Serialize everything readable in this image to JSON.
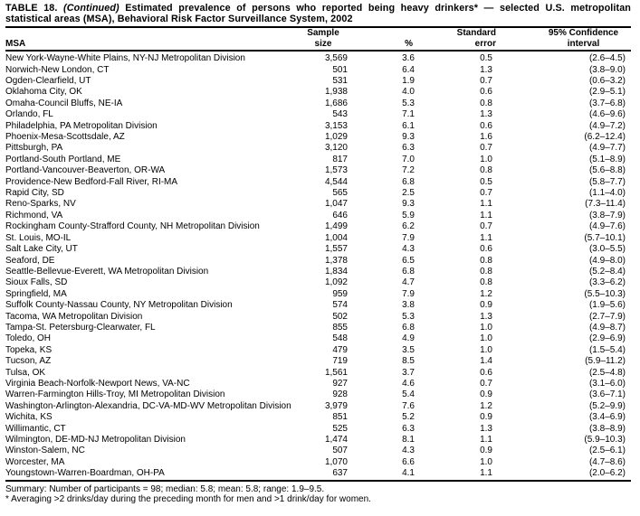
{
  "page": {
    "title": {
      "label": "TABLE 18.",
      "continued": "(Continued)",
      "text": "Estimated prevalence of persons who reported being heavy drinkers* — selected U.S. metropolitan statistical areas (MSA), Behavioral Risk Factor Surveillance System, 2002"
    },
    "columns": {
      "msa": "MSA",
      "sample_line1": "Sample",
      "sample_line2": "size",
      "percent": "%",
      "se_line1": "Standard",
      "se_line2": "error",
      "ci_line1": "95% Confidence",
      "ci_line2": "interval"
    },
    "summary": "Summary: Number of participants = 98; median: 5.8; mean: 5.8; range: 1.9–9.5.",
    "footnote": "* Averaging >2 drinks/day during the preceding month for men and >1 drink/day for women."
  },
  "chart_data": {
    "type": "table",
    "columns": [
      "MSA",
      "Sample size",
      "%",
      "Standard error",
      "95% Confidence interval"
    ],
    "rows": [
      [
        "New York-Wayne-White Plains, NY-NJ Metropolitan Division",
        "3,569",
        "3.6",
        "0.5",
        "(2.6–4.5)"
      ],
      [
        "Norwich-New London, CT",
        "501",
        "6.4",
        "1.3",
        "(3.8–9.0)"
      ],
      [
        "Ogden-Clearfield, UT",
        "531",
        "1.9",
        "0.7",
        "(0.6–3.2)"
      ],
      [
        "Oklahoma City, OK",
        "1,938",
        "4.0",
        "0.6",
        "(2.9–5.1)"
      ],
      [
        "Omaha-Council Bluffs, NE-IA",
        "1,686",
        "5.3",
        "0.8",
        "(3.7–6.8)"
      ],
      [
        "Orlando, FL",
        "543",
        "7.1",
        "1.3",
        "(4.6–9.6)"
      ],
      [
        "Philadelphia, PA Metropolitan Division",
        "3,153",
        "6.1",
        "0.6",
        "(4.9–7.2)"
      ],
      [
        "Phoenix-Mesa-Scottsdale, AZ",
        "1,029",
        "9.3",
        "1.6",
        "(6.2–12.4)"
      ],
      [
        "Pittsburgh, PA",
        "3,120",
        "6.3",
        "0.7",
        "(4.9–7.7)"
      ],
      [
        "Portland-South Portland, ME",
        "817",
        "7.0",
        "1.0",
        "(5.1–8.9)"
      ],
      [
        "Portland-Vancouver-Beaverton, OR-WA",
        "1,573",
        "7.2",
        "0.8",
        "(5.6–8.8)"
      ],
      [
        "Providence-New Bedford-Fall River, RI-MA",
        "4,544",
        "6.8",
        "0.5",
        "(5.8–7.7)"
      ],
      [
        "Rapid City, SD",
        "565",
        "2.5",
        "0.7",
        "(1.1–4.0)"
      ],
      [
        "Reno-Sparks, NV",
        "1,047",
        "9.3",
        "1.1",
        "(7.3–11.4)"
      ],
      [
        "Richmond, VA",
        "646",
        "5.9",
        "1.1",
        "(3.8–7.9)"
      ],
      [
        "Rockingham County-Strafford County, NH Metropolitan Division",
        "1,499",
        "6.2",
        "0.7",
        "(4.9–7.6)"
      ],
      [
        "St. Louis, MO-IL",
        "1,004",
        "7.9",
        "1.1",
        "(5.7–10.1)"
      ],
      [
        "Salt Lake City, UT",
        "1,557",
        "4.3",
        "0.6",
        "(3.0–5.5)"
      ],
      [
        "Seaford, DE",
        "1,378",
        "6.5",
        "0.8",
        "(4.9–8.0)"
      ],
      [
        "Seattle-Bellevue-Everett, WA Metropolitan Division",
        "1,834",
        "6.8",
        "0.8",
        "(5.2–8.4)"
      ],
      [
        "Sioux Falls, SD",
        "1,092",
        "4.7",
        "0.8",
        "(3.3–6.2)"
      ],
      [
        "Springfield, MA",
        "959",
        "7.9",
        "1.2",
        "(5.5–10.3)"
      ],
      [
        "Suffolk County-Nassau County, NY Metropolitan Division",
        "574",
        "3.8",
        "0.9",
        "(1.9–5.6)"
      ],
      [
        "Tacoma, WA Metropolitan Division",
        "502",
        "5.3",
        "1.3",
        "(2.7–7.9)"
      ],
      [
        "Tampa-St. Petersburg-Clearwater, FL",
        "855",
        "6.8",
        "1.0",
        "(4.9–8.7)"
      ],
      [
        "Toledo, OH",
        "548",
        "4.9",
        "1.0",
        "(2.9–6.9)"
      ],
      [
        "Topeka, KS",
        "479",
        "3.5",
        "1.0",
        "(1.5–5.4)"
      ],
      [
        "Tucson, AZ",
        "719",
        "8.5",
        "1.4",
        "(5.9–11.2)"
      ],
      [
        "Tulsa, OK",
        "1,561",
        "3.7",
        "0.6",
        "(2.5–4.8)"
      ],
      [
        "Virginia Beach-Norfolk-Newport News, VA-NC",
        "927",
        "4.6",
        "0.7",
        "(3.1–6.0)"
      ],
      [
        "Warren-Farmington Hills-Troy, MI Metropolitan Division",
        "928",
        "5.4",
        "0.9",
        "(3.6–7.1)"
      ],
      [
        "Washington-Arlington-Alexandria, DC-VA-MD-WV Metropolitan Division",
        "3,979",
        "7.6",
        "1.2",
        "(5.2–9.9)"
      ],
      [
        "Wichita, KS",
        "851",
        "5.2",
        "0.9",
        "(3.4–6.9)"
      ],
      [
        "Willimantic, CT",
        "525",
        "6.3",
        "1.3",
        "(3.8–8.9)"
      ],
      [
        "Wilmington, DE-MD-NJ Metropolitan Division",
        "1,474",
        "8.1",
        "1.1",
        "(5.9–10.3)"
      ],
      [
        "Winston-Salem, NC",
        "507",
        "4.3",
        "0.9",
        "(2.5–6.1)"
      ],
      [
        "Worcester, MA",
        "1,070",
        "6.6",
        "1.0",
        "(4.7–8.6)"
      ],
      [
        "Youngstown-Warren-Boardman, OH-PA",
        "637",
        "4.1",
        "1.1",
        "(2.0–6.2)"
      ]
    ]
  }
}
